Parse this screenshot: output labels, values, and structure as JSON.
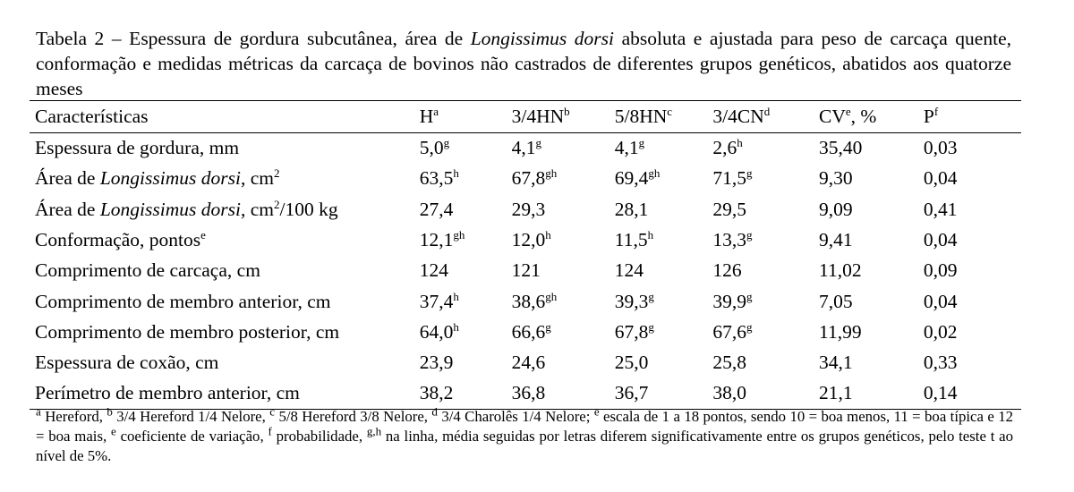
{
  "caption": {
    "prefix": "Tabela 2 – Espessura de gordura subcutânea, área de ",
    "italic": "Longissimus dorsi",
    "suffix": " absoluta e ajustada para peso de carcaça quente, conformação e medidas métricas da carcaça de bovinos não castrados de diferentes grupos genéticos, abatidos aos  quatorze meses"
  },
  "headers": [
    {
      "text": "Características",
      "sup": ""
    },
    {
      "text": "H",
      "sup": "a"
    },
    {
      "text": "3/4HN",
      "sup": "b"
    },
    {
      "text": "5/8HN",
      "sup": "c"
    },
    {
      "text": "3/4CN",
      "sup": "d"
    },
    {
      "text": "CV",
      "sup": "e",
      "after": ", %"
    },
    {
      "text": "P",
      "sup": "f"
    }
  ],
  "rows": [
    {
      "label": {
        "pre": "Espessura de gordura, mm",
        "it": "",
        "post": "",
        "sup": "",
        "post2": ""
      },
      "cells": [
        {
          "v": "5,0",
          "s": "g"
        },
        {
          "v": "4,1",
          "s": "g"
        },
        {
          "v": "4,1",
          "s": "g"
        },
        {
          "v": "2,6",
          "s": "h"
        },
        {
          "v": "35,40",
          "s": ""
        },
        {
          "v": "0,03",
          "s": ""
        }
      ]
    },
    {
      "label": {
        "pre": "Área de ",
        "it": "Longissimus dorsi",
        "post": ", cm",
        "sup": "2",
        "post2": ""
      },
      "cells": [
        {
          "v": "63,5",
          "s": "h"
        },
        {
          "v": "67,8",
          "s": "gh"
        },
        {
          "v": "69,4",
          "s": "gh"
        },
        {
          "v": "71,5",
          "s": "g"
        },
        {
          "v": "9,30",
          "s": ""
        },
        {
          "v": "0,04",
          "s": ""
        }
      ]
    },
    {
      "label": {
        "pre": "Área de ",
        "it": "Longissimus dorsi",
        "post": ", cm",
        "sup": "2",
        "post2": "/100 kg"
      },
      "cells": [
        {
          "v": "27,4",
          "s": ""
        },
        {
          "v": "29,3",
          "s": ""
        },
        {
          "v": "28,1",
          "s": ""
        },
        {
          "v": "29,5",
          "s": ""
        },
        {
          "v": "9,09",
          "s": ""
        },
        {
          "v": "0,41",
          "s": ""
        }
      ]
    },
    {
      "label": {
        "pre": "Conformação, pontos",
        "it": "",
        "post": "",
        "sup": "e",
        "post2": ""
      },
      "cells": [
        {
          "v": "12,1",
          "s": "gh"
        },
        {
          "v": "12,0",
          "s": "h"
        },
        {
          "v": "11,5",
          "s": "h"
        },
        {
          "v": "13,3",
          "s": "g"
        },
        {
          "v": "9,41",
          "s": ""
        },
        {
          "v": "0,04",
          "s": ""
        }
      ]
    },
    {
      "label": {
        "pre": "Comprimento de carcaça, cm",
        "it": "",
        "post": "",
        "sup": "",
        "post2": ""
      },
      "cells": [
        {
          "v": "124",
          "s": ""
        },
        {
          "v": "121",
          "s": ""
        },
        {
          "v": "124",
          "s": ""
        },
        {
          "v": "126",
          "s": ""
        },
        {
          "v": "11,02",
          "s": ""
        },
        {
          "v": "0,09",
          "s": ""
        }
      ]
    },
    {
      "label": {
        "pre": "Comprimento de membro anterior, cm",
        "it": "",
        "post": "",
        "sup": "",
        "post2": ""
      },
      "cells": [
        {
          "v": "37,4",
          "s": "h"
        },
        {
          "v": "38,6",
          "s": "gh"
        },
        {
          "v": "39,3",
          "s": "g"
        },
        {
          "v": "39,9",
          "s": "g"
        },
        {
          "v": "7,05",
          "s": ""
        },
        {
          "v": "0,04",
          "s": ""
        }
      ]
    },
    {
      "label": {
        "pre": "Comprimento de membro posterior, cm",
        "it": "",
        "post": "",
        "sup": "",
        "post2": ""
      },
      "cells": [
        {
          "v": "64,0",
          "s": "h"
        },
        {
          "v": "66,6",
          "s": "g"
        },
        {
          "v": "67,8",
          "s": "g"
        },
        {
          "v": "67,6",
          "s": "g"
        },
        {
          "v": "11,99",
          "s": ""
        },
        {
          "v": "0,02",
          "s": ""
        }
      ]
    },
    {
      "label": {
        "pre": "Espessura de coxão, cm",
        "it": "",
        "post": "",
        "sup": "",
        "post2": ""
      },
      "cells": [
        {
          "v": "23,9",
          "s": ""
        },
        {
          "v": "24,6",
          "s": ""
        },
        {
          "v": "25,0",
          "s": ""
        },
        {
          "v": "25,8",
          "s": ""
        },
        {
          "v": "34,1",
          "s": ""
        },
        {
          "v": "0,33",
          "s": ""
        }
      ]
    },
    {
      "label": {
        "pre": "Perímetro de membro anterior, cm",
        "it": "",
        "post": "",
        "sup": "",
        "post2": ""
      },
      "cells": [
        {
          "v": "38,2",
          "s": ""
        },
        {
          "v": "36,8",
          "s": ""
        },
        {
          "v": "36,7",
          "s": ""
        },
        {
          "v": "38,0",
          "s": ""
        },
        {
          "v": "21,1",
          "s": ""
        },
        {
          "v": "0,14",
          "s": ""
        }
      ]
    }
  ],
  "footnote": [
    {
      "sup": "a",
      "text": " Hereford, "
    },
    {
      "sup": "b",
      "text": " 3/4 Hereford 1/4 Nelore, "
    },
    {
      "sup": "c",
      "text": " 5/8 Hereford 3/8 Nelore, "
    },
    {
      "sup": "d",
      "text": " 3/4 Charolês 1/4 Nelore; "
    },
    {
      "sup": "e",
      "text": " escala de 1 a 18 pontos, sendo 10 = boa menos, 11 = boa típica e 12 = boa mais, "
    },
    {
      "sup": "e",
      "text": " coeficiente de variação, "
    },
    {
      "sup": "f",
      "text": " probabilidade, "
    },
    {
      "sup": "g,h",
      "text": " na linha, média seguidas por letras diferem significativamente entre os grupos genéticos, pelo teste t ao nível de 5%."
    }
  ]
}
